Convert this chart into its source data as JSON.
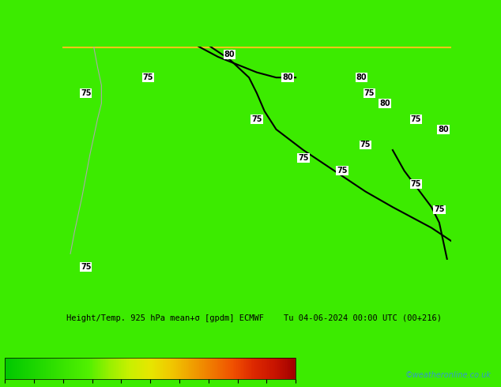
{
  "title_text": "Height/Temp. 925 hPa mean+σ [gpdm] ECMWF    Tu 04-06-2024 00:00 UTC (00+216)",
  "watermark": "©weatheronline.co.uk",
  "colorbar_label": "",
  "cmap_colors": [
    "#00c800",
    "#14d200",
    "#28dc00",
    "#3ce600",
    "#50f000",
    "#96f000",
    "#c8f000",
    "#e6e600",
    "#f0c800",
    "#f0a000",
    "#f07800",
    "#f05000",
    "#dc2800",
    "#c81400",
    "#a00000"
  ],
  "cbar_ticks": [
    0,
    2,
    4,
    6,
    8,
    10,
    12,
    14,
    16,
    18,
    20
  ],
  "cbar_min": 0,
  "cbar_max": 20,
  "bg_color": "#3ceb00",
  "map_bg": "#3ceb00",
  "border_top_color": "#f5c518",
  "contour_color_black": "#000000",
  "contour_color_gray": "#aaaaaa",
  "fig_width": 6.34,
  "fig_height": 4.9,
  "dpi": 100
}
